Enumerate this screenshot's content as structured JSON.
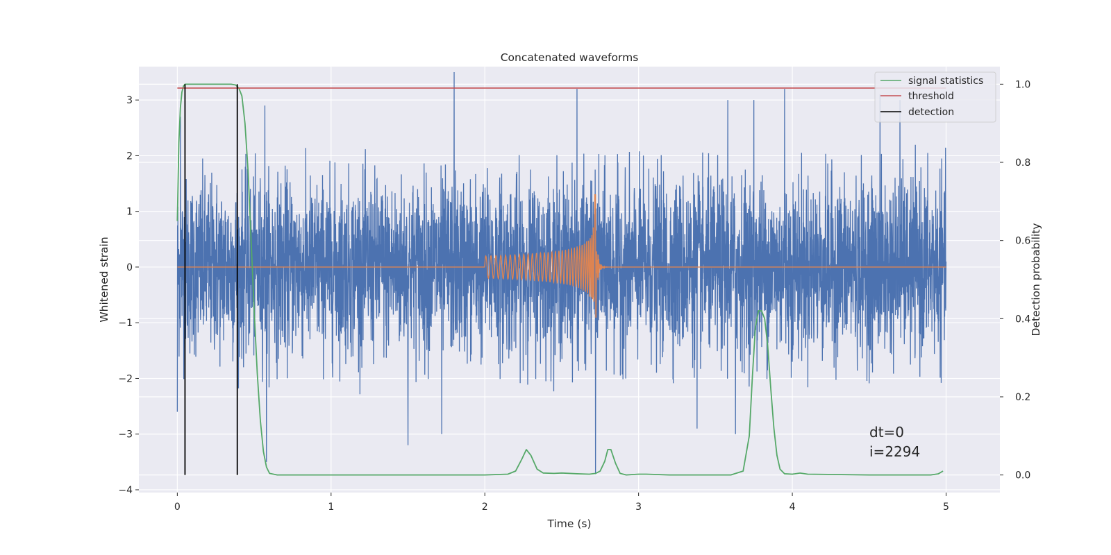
{
  "chart_data": {
    "type": "line",
    "title": "Concatenated waveforms",
    "xlabel": "Time (s)",
    "ylabel_left": "Whitened strain",
    "ylabel_right": "Detection probability",
    "xlim": [
      -0.25,
      5.35
    ],
    "ylim_left": [
      -4.05,
      3.6
    ],
    "ylim_right": [
      -0.045,
      1.045
    ],
    "xticks": [
      0,
      1,
      2,
      3,
      4,
      5
    ],
    "xtick_labels": [
      "0",
      "1",
      "2",
      "3",
      "4",
      "5"
    ],
    "yticks_left": [
      -4,
      -3,
      -2,
      -1,
      0,
      1,
      2,
      3
    ],
    "ytick_labels_left": [
      "−4",
      "−3",
      "−2",
      "−1",
      "0",
      "1",
      "2",
      "3"
    ],
    "yticks_right": [
      0.0,
      0.2,
      0.4,
      0.6,
      0.8,
      1.0
    ],
    "ytick_labels_right": [
      "0.0",
      "0.2",
      "0.4",
      "0.6",
      "0.8",
      "1.0"
    ],
    "grid": true,
    "legend_position": "top-right",
    "legend": [
      {
        "label": "signal statistics",
        "color": "#55a868"
      },
      {
        "label": "threshold",
        "color": "#c44e52"
      },
      {
        "label": "detection",
        "color": "#000000"
      }
    ],
    "series": [
      {
        "role": "whitened-strain-noise",
        "axis": "left",
        "color": "#4c72b0",
        "x_range": [
          0,
          5
        ],
        "typical_range": [
          -2.0,
          2.0
        ],
        "peaks": [
          {
            "x": 0.0,
            "y": -2.6
          },
          {
            "x": 0.02,
            "y": 2.7
          },
          {
            "x": 0.57,
            "y": 2.9
          },
          {
            "x": 0.58,
            "y": -3.5
          },
          {
            "x": 1.5,
            "y": -3.2
          },
          {
            "x": 1.8,
            "y": 3.5
          },
          {
            "x": 1.72,
            "y": -3.0
          },
          {
            "x": 2.6,
            "y": 3.2
          },
          {
            "x": 2.72,
            "y": -3.72
          },
          {
            "x": 3.38,
            "y": -2.9
          },
          {
            "x": 3.58,
            "y": 3.0
          },
          {
            "x": 3.63,
            "y": -3.0
          },
          {
            "x": 3.75,
            "y": 3.0
          },
          {
            "x": 3.95,
            "y": 3.2
          },
          {
            "x": 4.57,
            "y": 3.1
          },
          {
            "x": 4.7,
            "y": 3.0
          }
        ]
      },
      {
        "role": "injected-chirp",
        "axis": "left",
        "color": "#dd8452",
        "x_start": 2.0,
        "x_peak": 2.72,
        "x_end": 3.0,
        "peak_amplitude": 1.3,
        "min_amplitude": -0.9
      },
      {
        "name": "signal statistics",
        "axis": "right",
        "color": "#55a868",
        "x": [
          0.0,
          0.005,
          0.01,
          0.02,
          0.03,
          0.04,
          0.05,
          0.06,
          0.08,
          0.1,
          0.15,
          0.2,
          0.25,
          0.3,
          0.35,
          0.38,
          0.4,
          0.42,
          0.44,
          0.46,
          0.48,
          0.5,
          0.52,
          0.54,
          0.56,
          0.58,
          0.6,
          0.65,
          0.7,
          1.0,
          1.5,
          2.0,
          2.15,
          2.2,
          2.24,
          2.27,
          2.3,
          2.34,
          2.38,
          2.45,
          2.5,
          2.6,
          2.68,
          2.72,
          2.75,
          2.78,
          2.8,
          2.82,
          2.85,
          2.88,
          2.92,
          3.0,
          3.05,
          3.2,
          3.6,
          3.68,
          3.72,
          3.74,
          3.76,
          3.78,
          3.8,
          3.82,
          3.84,
          3.86,
          3.88,
          3.9,
          3.92,
          3.95,
          4.0,
          4.05,
          4.1,
          4.5,
          4.9,
          4.95,
          4.98
        ],
        "values": [
          0.65,
          0.75,
          0.85,
          0.94,
          0.98,
          0.995,
          1.0,
          1.0,
          1.0,
          1.0,
          1.0,
          1.0,
          1.0,
          1.0,
          1.0,
          0.998,
          0.99,
          0.97,
          0.9,
          0.78,
          0.6,
          0.42,
          0.26,
          0.14,
          0.06,
          0.02,
          0.004,
          0.0,
          0.0,
          0.0,
          0.0,
          0.0,
          0.002,
          0.01,
          0.04,
          0.065,
          0.05,
          0.015,
          0.005,
          0.004,
          0.005,
          0.003,
          0.002,
          0.004,
          0.01,
          0.035,
          0.065,
          0.065,
          0.03,
          0.004,
          0.0,
          0.002,
          0.002,
          0.0,
          0.0,
          0.01,
          0.1,
          0.25,
          0.38,
          0.42,
          0.42,
          0.4,
          0.33,
          0.22,
          0.12,
          0.05,
          0.015,
          0.003,
          0.002,
          0.005,
          0.002,
          0.0,
          0.0,
          0.003,
          0.01
        ]
      },
      {
        "name": "threshold",
        "axis": "right",
        "color": "#c44e52",
        "x": [
          0,
          5
        ],
        "values": [
          0.99,
          0.99
        ]
      },
      {
        "name": "detection",
        "axis": "right",
        "color": "#000000",
        "type": "vertical-lines",
        "x": [
          0.05,
          0.39
        ],
        "y_range": [
          0.0,
          1.0
        ]
      }
    ],
    "annotations": [
      "dt=0",
      "i=2294"
    ]
  }
}
